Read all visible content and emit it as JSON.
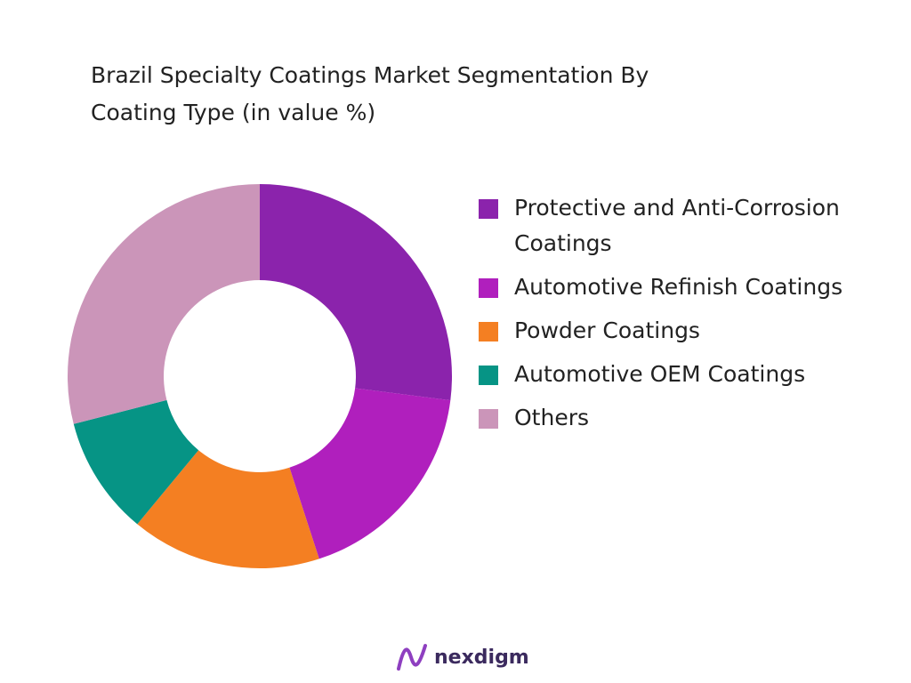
{
  "chart_data": {
    "type": "donut",
    "title": "Brazil Specialty Coatings Market Segmentation By Coating Type (in value %)",
    "categories": [
      "Protective and Anti-Corrosion Coatings",
      "Automotive Refinish Coatings",
      "Powder Coatings",
      "Automotive OEM Coatings",
      "Others"
    ],
    "values": [
      27,
      18,
      16,
      10,
      29
    ],
    "colors": [
      "#8b23ac",
      "#b01fbd",
      "#f47f22",
      "#069485",
      "#cb95b9"
    ],
    "legend": "right"
  },
  "logo": "nexdigm"
}
